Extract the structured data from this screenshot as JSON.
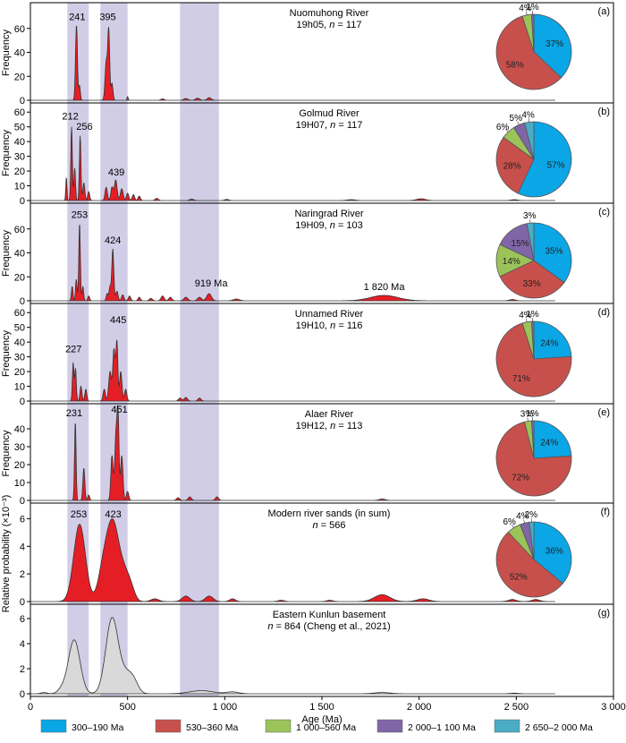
{
  "chart_data": {
    "type": "area",
    "xlabel": "Age (Ma)",
    "xlim": [
      0,
      3000
    ],
    "xticks": [
      0,
      500,
      1000,
      1500,
      2000,
      2500,
      3000
    ],
    "xtick_labels": [
      "0",
      "500",
      "1 000",
      "1 500",
      "2 000",
      "2 500",
      "3 000"
    ],
    "highlight_bands": [
      [
        190,
        300
      ],
      [
        360,
        500
      ],
      [
        770,
        970
      ]
    ],
    "age_groups": [
      {
        "label": "300–190 Ma",
        "color": "#0aa6e6"
      },
      {
        "label": "530–360 Ma",
        "color": "#c8504c"
      },
      {
        "label": "1 000–560 Ma",
        "color": "#9bc35a"
      },
      {
        "label": "2 000–1 100 Ma",
        "color": "#8066a6"
      },
      {
        "label": "2 650–2 000 Ma",
        "color": "#4bacc6"
      }
    ],
    "panels": [
      {
        "letter": "(a)",
        "title": "Nuomuhong River",
        "sample": "19h05",
        "n": "117",
        "ylabel": "Frequency",
        "ylim": [
          0,
          80
        ],
        "yticks": [
          0,
          20,
          40,
          60
        ],
        "fill": "#e51e25",
        "peaks": [
          [
            237,
            63,
            5
          ],
          [
            253,
            12,
            4
          ],
          [
            390,
            32,
            6
          ],
          [
            403,
            58,
            5
          ],
          [
            420,
            14,
            5
          ],
          [
            500,
            3,
            3
          ],
          [
            680,
            1.2,
            8
          ],
          [
            800,
            1.5,
            10
          ],
          [
            860,
            1.8,
            10
          ],
          [
            920,
            2.2,
            10
          ]
        ],
        "labels": [
          {
            "text": "241",
            "x": 241,
            "y": 67
          },
          {
            "text": "395",
            "x": 398,
            "y": 67
          }
        ],
        "pie": [
          37,
          58,
          4,
          1,
          0
        ],
        "pie_labels": [
          "37%",
          "58%",
          "4%",
          "1%",
          ""
        ]
      },
      {
        "letter": "(b)",
        "title": "Golmud River",
        "sample": "19H07",
        "n": "117",
        "ylabel": "Frequency",
        "ylim": [
          0,
          65
        ],
        "yticks": [
          0,
          10,
          20,
          30,
          40,
          50,
          60
        ],
        "fill": "#e51e25",
        "peaks": [
          [
            185,
            16,
            3
          ],
          [
            212,
            50,
            4
          ],
          [
            228,
            22,
            4
          ],
          [
            256,
            44,
            4
          ],
          [
            275,
            12,
            5
          ],
          [
            300,
            6,
            5
          ],
          [
            390,
            9,
            6
          ],
          [
            420,
            9,
            6
          ],
          [
            439,
            14,
            7
          ],
          [
            470,
            8,
            7
          ],
          [
            500,
            5,
            6
          ],
          [
            530,
            4,
            6
          ],
          [
            560,
            3,
            6
          ],
          [
            650,
            1.5,
            8
          ],
          [
            830,
            1,
            10
          ],
          [
            1010,
            0.8,
            10
          ],
          [
            1650,
            0.6,
            20
          ],
          [
            2010,
            1.2,
            22
          ],
          [
            2490,
            0.6,
            15
          ]
        ],
        "labels": [
          {
            "text": "212",
            "x": 205,
            "y": 55
          },
          {
            "text": "256",
            "x": 278,
            "y": 48
          },
          {
            "text": "439",
            "x": 442,
            "y": 17
          }
        ],
        "pie": [
          57,
          28,
          6,
          5,
          4
        ],
        "pie_labels": [
          "57%",
          "28%",
          "6%",
          "5%",
          "4%"
        ]
      },
      {
        "letter": "(c)",
        "title": "Naringrad River",
        "sample": "19H09",
        "n": "103",
        "ylabel": "Frequency",
        "ylim": [
          0,
          80
        ],
        "yticks": [
          0,
          20,
          40,
          60
        ],
        "fill": "#e51e25",
        "peaks": [
          [
            215,
            12,
            4
          ],
          [
            236,
            18,
            4
          ],
          [
            253,
            65,
            4
          ],
          [
            270,
            12,
            4
          ],
          [
            300,
            4,
            5
          ],
          [
            395,
            6,
            5
          ],
          [
            410,
            12,
            5
          ],
          [
            424,
            43,
            5
          ],
          [
            445,
            8,
            6
          ],
          [
            475,
            5,
            6
          ],
          [
            510,
            4,
            6
          ],
          [
            560,
            3,
            6
          ],
          [
            620,
            2,
            8
          ],
          [
            680,
            4,
            8
          ],
          [
            720,
            3,
            8
          ],
          [
            800,
            3,
            10
          ],
          [
            870,
            3,
            10
          ],
          [
            919,
            6,
            12
          ],
          [
            1060,
            1.5,
            15
          ],
          [
            1820,
            4.5,
            70
          ],
          [
            2480,
            1,
            15
          ]
        ],
        "labels": [
          {
            "text": "253",
            "x": 253,
            "y": 69
          },
          {
            "text": "424",
            "x": 424,
            "y": 48
          },
          {
            "text": "919 Ma",
            "x": 930,
            "y": 12
          },
          {
            "text": "1 820 Ma",
            "x": 1820,
            "y": 9
          }
        ],
        "pie": [
          35,
          33,
          14,
          15,
          3
        ],
        "pie_labels": [
          "35%",
          "33%",
          "14%",
          "15%",
          "3%"
        ]
      },
      {
        "letter": "(d)",
        "title": "Unnamed River",
        "sample": "19H10",
        "n": "116",
        "ylabel": "Frequency",
        "ylim": [
          0,
          65
        ],
        "yticks": [
          0,
          10,
          20,
          30,
          40,
          50,
          60
        ],
        "fill": "#e51e25",
        "peaks": [
          [
            220,
            26,
            4
          ],
          [
            232,
            22,
            4
          ],
          [
            260,
            10,
            5
          ],
          [
            285,
            8,
            5
          ],
          [
            380,
            8,
            6
          ],
          [
            410,
            20,
            7
          ],
          [
            430,
            35,
            6
          ],
          [
            445,
            40,
            5
          ],
          [
            465,
            20,
            6
          ],
          [
            490,
            8,
            6
          ],
          [
            770,
            2,
            8
          ],
          [
            800,
            2.5,
            8
          ],
          [
            870,
            2,
            8
          ]
        ],
        "labels": [
          {
            "text": "227",
            "x": 222,
            "y": 33
          },
          {
            "text": "445",
            "x": 452,
            "y": 53
          }
        ],
        "pie": [
          24,
          71,
          4,
          1,
          0
        ],
        "pie_labels": [
          "24%",
          "71%",
          "4%",
          "1%",
          ""
        ]
      },
      {
        "letter": "(e)",
        "title": "Alaer River",
        "sample": "19H12",
        "n": "113",
        "ylabel": "Frequency",
        "ylim": [
          0,
          53
        ],
        "yticks": [
          0,
          10,
          20,
          30,
          40
        ],
        "fill": "#e51e25",
        "peaks": [
          [
            231,
            44,
            4
          ],
          [
            275,
            18,
            5
          ],
          [
            300,
            3,
            5
          ],
          [
            420,
            25,
            6
          ],
          [
            440,
            36,
            6
          ],
          [
            451,
            46,
            5
          ],
          [
            470,
            25,
            6
          ],
          [
            500,
            5,
            6
          ],
          [
            760,
            1.5,
            8
          ],
          [
            820,
            2,
            8
          ],
          [
            960,
            2,
            8
          ],
          [
            1810,
            0.8,
            15
          ]
        ],
        "labels": [
          {
            "text": "231",
            "x": 225,
            "y": 47
          },
          {
            "text": "451",
            "x": 458,
            "y": 49
          }
        ],
        "pie": [
          24,
          72,
          3,
          1,
          0
        ],
        "pie_labels": [
          "24%",
          "72%",
          "3%",
          "1%",
          ""
        ]
      },
      {
        "letter": "(f)",
        "title": "Modern river sands (in sum)",
        "sample": "",
        "n": "566",
        "ylabel": "Relative probability (×10⁻³)",
        "ylim": [
          0,
          7
        ],
        "yticks": [
          0,
          2,
          4,
          6
        ],
        "fill": "#e51e25",
        "peaks": [
          [
            253,
            5.6,
            30
          ],
          [
            423,
            5.8,
            35
          ],
          [
            370,
            1.4,
            25
          ],
          [
            490,
            1.4,
            25
          ],
          [
            520,
            0.6,
            20
          ],
          [
            640,
            0.2,
            20
          ],
          [
            800,
            0.4,
            20
          ],
          [
            920,
            0.4,
            20
          ],
          [
            1040,
            0.2,
            15
          ],
          [
            1290,
            0.1,
            15
          ],
          [
            1540,
            0.1,
            15
          ],
          [
            1810,
            0.5,
            40
          ],
          [
            2020,
            0.2,
            30
          ],
          [
            2480,
            0.15,
            20
          ],
          [
            2600,
            0.15,
            20
          ]
        ],
        "labels": [
          {
            "text": "253",
            "x": 249,
            "y": 6.1
          },
          {
            "text": "423",
            "x": 426,
            "y": 6.1
          }
        ],
        "pie": [
          36,
          52,
          6,
          4,
          2
        ],
        "pie_labels": [
          "36%",
          "52%",
          "6%",
          "4%",
          "2%"
        ]
      },
      {
        "letter": "(g)",
        "title": "Eastern Kunlun basement",
        "sample": "",
        "n": "864",
        "ref": "(Cheng et al., 2021)",
        "ylabel": "",
        "ylim": [
          0,
          7
        ],
        "yticks": [
          0,
          2,
          4,
          6
        ],
        "fill": "#d9d9d9",
        "peaks": [
          [
            225,
            4.3,
            30
          ],
          [
            420,
            6.0,
            32
          ],
          [
            490,
            1.3,
            30
          ],
          [
            530,
            0.9,
            25
          ],
          [
            160,
            0.3,
            20
          ],
          [
            70,
            0.1,
            15
          ],
          [
            880,
            0.25,
            60
          ],
          [
            1040,
            0.15,
            30
          ],
          [
            1810,
            0.1,
            40
          ],
          [
            2490,
            0.05,
            20
          ]
        ],
        "labels": [],
        "pie": [],
        "pie_labels": []
      }
    ]
  }
}
